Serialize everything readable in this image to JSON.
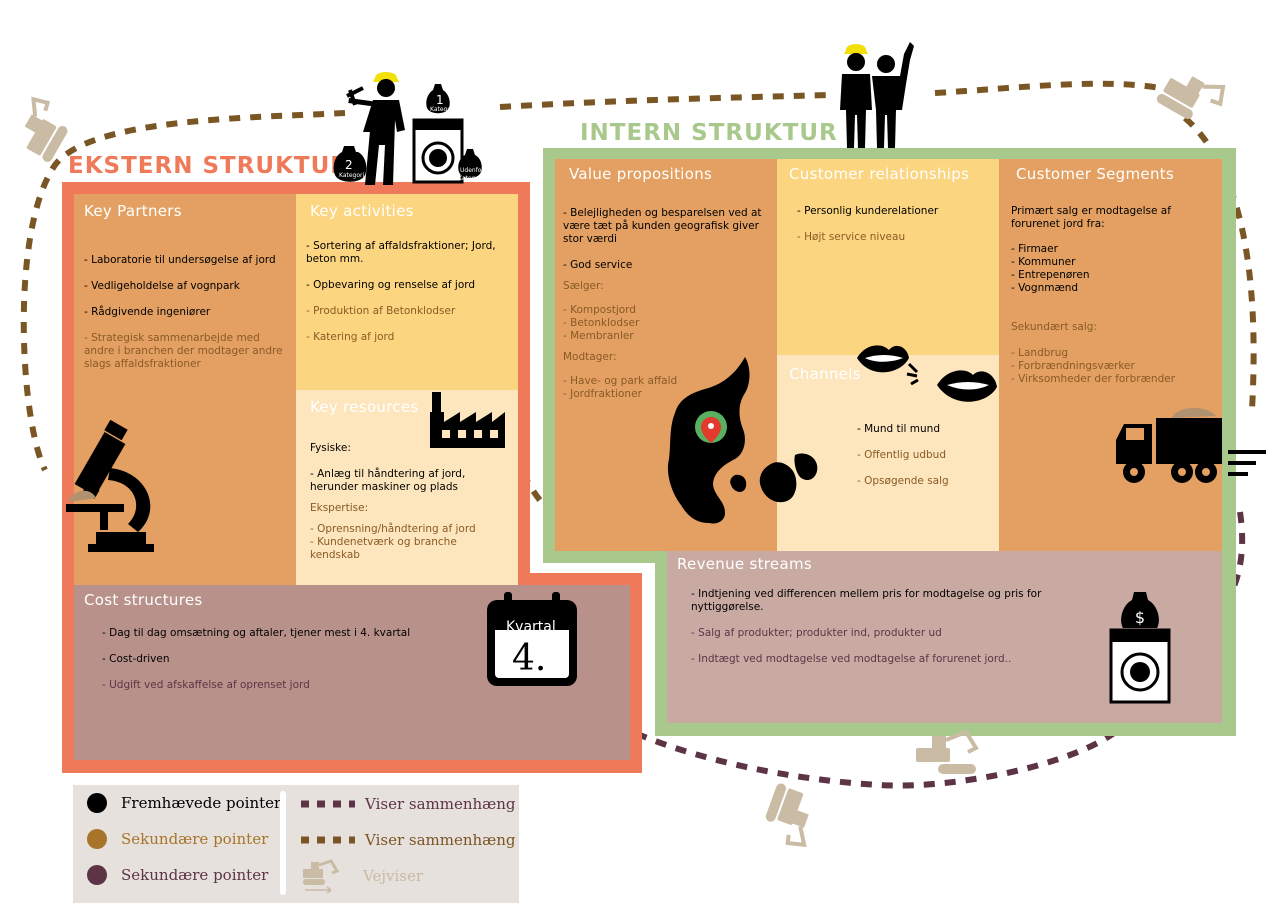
{
  "titles": {
    "ekstern": "EKSTERN STRUKTUR",
    "intern": "INTERN STRUKTUR"
  },
  "icons": {
    "bag_1": "1",
    "bag_1_label": "Kategori",
    "bag_2": "2",
    "bag_2_label": "Kategori",
    "bag_3_label1": "Udenfor",
    "bag_3_label2": "Kategori",
    "calendar_top": "Kvartal",
    "calendar_big": "4."
  },
  "key_partners": {
    "title": "Key Partners",
    "items": [
      "- Laboratorie til undersøgelse af jord",
      "- Vedligeholdelse af vognpark",
      "- Rådgivende ingeniører"
    ],
    "secondary": "- Strategisk sammenarbejde med andre i branchen der modtager andre slags affaldsfraktioner"
  },
  "key_activities": {
    "title": "Key activities",
    "items": [
      "- Sortering af affaldsfraktioner; Jord, beton mm.",
      "- Opbevaring og renselse af jord"
    ],
    "secondary": [
      "- Produktion af Betonklodser",
      "- Katering af jord"
    ]
  },
  "key_resources": {
    "title": "Key resources",
    "items": [
      "Fysiske:",
      "- Anlæg til håndtering af jord, herunder maskiner og plads"
    ],
    "secondary_label": "Ekspertise:",
    "secondary": [
      "- Oprensning/håndtering af jord",
      "- Kundenetværk og branche kendskab"
    ]
  },
  "cost_structures": {
    "title": "Cost structures",
    "items": [
      "- Dag til dag omsætning og aftaler, tjener mest i 4. kvartal",
      "- Cost-driven"
    ],
    "tertiary": "- Udgift ved afskaffelse af oprenset jord"
  },
  "value_propositions": {
    "title": "Value propositions",
    "items": [
      "- Belejligheden og besparelsen ved at være tæt på kunden geografisk giver stor værdi",
      "- God service"
    ],
    "seller_label": "Sælger:",
    "seller": [
      "- Kompostjord",
      "- Betonklodser",
      "- Membranler"
    ],
    "receiver_label": "Modtager:",
    "receiver": [
      "- Have- og park affald",
      "- Jordfraktioner"
    ]
  },
  "customer_relationships": {
    "title": "Customer relationships",
    "items": [
      "- Personlig kunderelationer"
    ],
    "secondary": [
      "- Højt service niveau"
    ]
  },
  "channels": {
    "title": "Channels",
    "items": [
      "- Mund til mund"
    ],
    "secondary": [
      "- Offentlig udbud",
      "- Opsøgende salg"
    ]
  },
  "customer_segments": {
    "title": "Customer Segments",
    "intro": "Primært salg er modtagelse af forurenet jord fra:",
    "items": [
      "- Firmaer",
      "- Kommuner",
      "- Entrepenøren",
      "- Vognmænd"
    ],
    "secondary_label": "Sekundært salg:",
    "secondary": [
      "- Landbrug",
      "- Forbrændningsværker",
      "- Virksomheder der forbrænder"
    ]
  },
  "revenue_streams": {
    "title": "Revenue streams",
    "items": [
      "- Indtjening ved differencen mellem pris for modtagelse og pris for nyttiggørelse."
    ],
    "tertiary": [
      "- Salg af produkter; produkter ind, produkter ud",
      "- Indtægt ved modtagelse ved modtagelse af forurenet jord.."
    ]
  },
  "legend": {
    "primary": "Fremhævede pointer",
    "secondary": "Sekundære pointer",
    "tertiary": "Sekundære pointer",
    "link_purple": "Viser sammenhæng",
    "link_brown": "Viser sammenhæng",
    "guide": "Vejviser"
  },
  "colors": {
    "ekstern": "#ef7a5a",
    "intern": "#a8c98b",
    "block_dark": "#e3a062",
    "block_light": "#fcd581",
    "block_pale": "#fde6bd",
    "cost": "#b8928a",
    "revenue": "#c9aaa3",
    "text_primary": "#000000",
    "text_secondary": "#8a5a26",
    "text_tertiary": "#5c3446",
    "dots_brown": "#7a5624",
    "dots_purple": "#5c3446",
    "guide": "#c9bba4"
  }
}
